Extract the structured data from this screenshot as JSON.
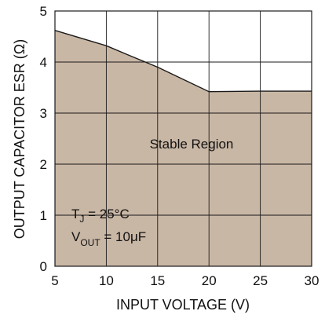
{
  "chart_data": {
    "type": "area",
    "title": "",
    "xlabel": "INPUT VOLTAGE (V)",
    "ylabel": "OUTPUT CAPACITOR ESR (Ω)",
    "xlim": [
      5,
      30
    ],
    "ylim": [
      0,
      5
    ],
    "x_ticks": [
      "5",
      "10",
      "15",
      "20",
      "25",
      "30"
    ],
    "y_ticks": [
      "0",
      "1",
      "2",
      "3",
      "4",
      "5"
    ],
    "grid": true,
    "x": [
      5,
      10,
      12,
      15,
      20,
      25,
      30
    ],
    "values": [
      4.62,
      4.32,
      4.15,
      3.9,
      3.42,
      3.43,
      3.43
    ],
    "fill_color": "#c9b7a5",
    "line_color": "#1a1a1a",
    "annotations": {
      "region": "Stable Region",
      "tj": "T",
      "tj_sub": "J",
      "tj_value": " = 25°C",
      "vout": "V",
      "vout_sub": "OUT",
      "vout_value": " = 10μF"
    }
  }
}
